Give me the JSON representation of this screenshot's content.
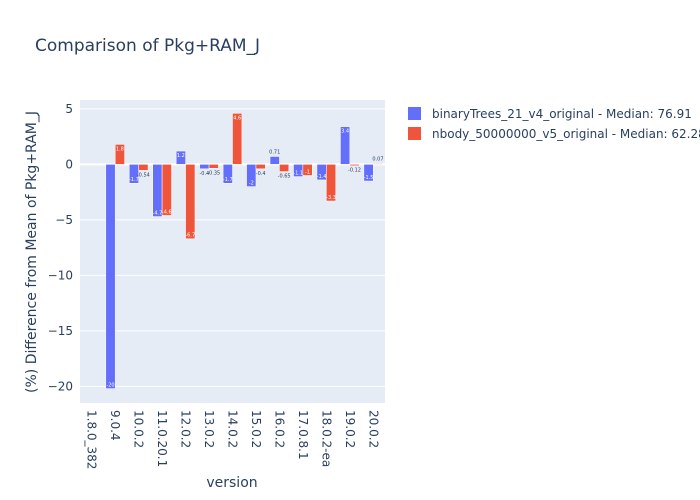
{
  "chart_data": {
    "type": "bar",
    "title": "Comparison of Pkg+RAM_J",
    "xlabel": "version",
    "ylabel": "(%) Difference from Mean of Pkg+RAM_J",
    "ylim": [
      -21.5,
      5.8
    ],
    "yticks": [
      5,
      0,
      -5,
      -10,
      -15,
      -20
    ],
    "categories": [
      "1.8.0_382",
      "9.0.4",
      "10.0.2",
      "11.0.20.1",
      "12.0.2",
      "13.0.2",
      "14.0.2",
      "15.0.2",
      "16.0.2",
      "17.0.8.1",
      "18.0.2-ea",
      "19.0.2",
      "20.0.2"
    ],
    "legend_position": "top-right",
    "series": [
      {
        "name": "binaryTrees_21_v4_original - Median: 76.91",
        "color": "#636efa",
        "values": [
          null,
          -20.2,
          -1.7,
          -4.7,
          1.2,
          -0.4,
          -1.7,
          -2.0,
          0.71,
          -1.1,
          -1.4,
          3.4,
          -1.5
        ],
        "labels": [
          "",
          "-20",
          "-1.7",
          "-4.7",
          "1.2",
          "-0.4",
          "-1.7",
          "-2",
          "0.71",
          "-1.1",
          "-1.4",
          "3.4",
          "-1.5"
        ]
      },
      {
        "name": "nbody_50000000_v5_original - Median: 62.28",
        "color": "#ef553b",
        "values": [
          null,
          1.8,
          -0.54,
          -4.6,
          -6.7,
          -0.35,
          4.6,
          -0.4,
          -0.65,
          -1.0,
          -3.3,
          -0.12,
          0.07
        ],
        "labels": [
          "",
          "1.8",
          "-0.54",
          "-4.6",
          "-6.7",
          "-0.35",
          "4.6",
          "-0.4",
          "-0.65",
          "-1",
          "-3.3",
          "-0.12",
          "0.07"
        ]
      }
    ]
  }
}
